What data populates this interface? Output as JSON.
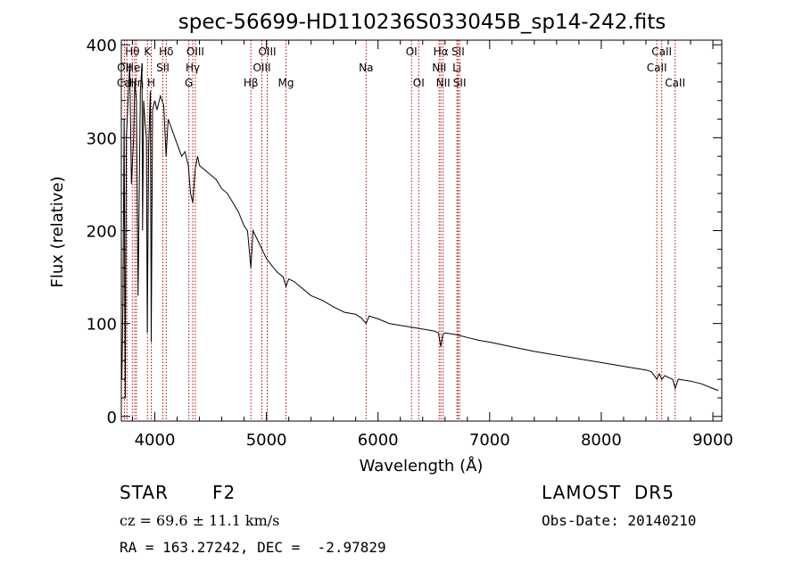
{
  "chart_data": {
    "type": "line",
    "title": "spec-56699-HD110236S033045B_sp14-242.fits",
    "xlabel": "Wavelength (Å)",
    "ylabel": "Flux (relative)",
    "xlim": [
      3700,
      9080
    ],
    "ylim": [
      -5,
      405
    ],
    "xticks": [
      4000,
      5000,
      6000,
      7000,
      8000,
      9000
    ],
    "xtick_labels": [
      "4000",
      "5000",
      "6000",
      "7000",
      "8000",
      "9000"
    ],
    "yticks": [
      0,
      100,
      200,
      300,
      400
    ],
    "ytick_labels": [
      "0",
      "100",
      "200",
      "300",
      "400"
    ],
    "grid": false,
    "series": [
      {
        "color": "#000000",
        "x": [
          3705,
          3715,
          3725,
          3735,
          3745,
          3760,
          3775,
          3790,
          3810,
          3820,
          3835,
          3850,
          3870,
          3885,
          3890,
          3900,
          3910,
          3925,
          3933,
          3945,
          3960,
          3968,
          3980,
          4000,
          4020,
          4050,
          4080,
          4101,
          4120,
          4150,
          4180,
          4210,
          4240,
          4270,
          4300,
          4320,
          4340,
          4360,
          4383,
          4400,
          4450,
          4500,
          4550,
          4600,
          4650,
          4700,
          4750,
          4800,
          4830,
          4861,
          4880,
          4920,
          4960,
          5000,
          5050,
          5100,
          5150,
          5175,
          5200,
          5250,
          5300,
          5400,
          5500,
          5600,
          5700,
          5800,
          5850,
          5893,
          5920,
          6000,
          6100,
          6200,
          6300,
          6400,
          6500,
          6540,
          6563,
          6580,
          6600,
          6700,
          6800,
          6900,
          7000,
          7200,
          7400,
          7600,
          7800,
          8000,
          8200,
          8400,
          8450,
          8498,
          8520,
          8542,
          8570,
          8600,
          8640,
          8662,
          8690,
          8800,
          8900,
          9000,
          9050
        ],
        "y": [
          40,
          130,
          320,
          20,
          300,
          340,
          380,
          250,
          300,
          360,
          340,
          130,
          350,
          380,
          200,
          340,
          320,
          300,
          90,
          290,
          350,
          80,
          330,
          340,
          330,
          345,
          335,
          280,
          320,
          310,
          300,
          290,
          280,
          285,
          270,
          240,
          230,
          265,
          280,
          270,
          265,
          260,
          255,
          245,
          240,
          230,
          220,
          205,
          200,
          160,
          200,
          190,
          180,
          170,
          162,
          155,
          150,
          140,
          148,
          145,
          140,
          130,
          125,
          118,
          112,
          110,
          106,
          100,
          108,
          105,
          100,
          98,
          96,
          94,
          92,
          90,
          75,
          88,
          90,
          88,
          85,
          82,
          80,
          75,
          70,
          66,
          62,
          58,
          54,
          50,
          48,
          40,
          46,
          40,
          44,
          42,
          40,
          30,
          40,
          38,
          35,
          30,
          28
        ]
      }
    ],
    "line_marks": [
      {
        "label": "OII",
        "x": 3727,
        "row": 1
      },
      {
        "label": "Hθ",
        "x": 3798,
        "row": 0
      },
      {
        "label": "CaII",
        "x": 3750,
        "row": 2
      },
      {
        "label": "HeI",
        "x": 3820,
        "row": 1
      },
      {
        "label": "Hη",
        "x": 3835,
        "row": 2
      },
      {
        "label": "K",
        "x": 3934,
        "row": 0
      },
      {
        "label": "H",
        "x": 3968,
        "row": 2
      },
      {
        "label": "Hδ",
        "x": 4102,
        "row": 0
      },
      {
        "label": "SII",
        "x": 4072,
        "row": 1
      },
      {
        "label": "OIII",
        "x": 4363,
        "row": 0
      },
      {
        "label": "Hγ",
        "x": 4340,
        "row": 1
      },
      {
        "label": "G",
        "x": 4305,
        "row": 2
      },
      {
        "label": "Hβ",
        "x": 4861,
        "row": 2
      },
      {
        "label": "OIII",
        "x": 5007,
        "row": 0
      },
      {
        "label": "OIII",
        "x": 4959,
        "row": 1
      },
      {
        "label": "Mg",
        "x": 5175,
        "row": 2
      },
      {
        "label": "Na",
        "x": 5893,
        "row": 1
      },
      {
        "label": "OI",
        "x": 6300,
        "row": 0
      },
      {
        "label": "OI",
        "x": 6364,
        "row": 2
      },
      {
        "label": "Hα",
        "x": 6563,
        "row": 0
      },
      {
        "label": "NII",
        "x": 6548,
        "row": 1
      },
      {
        "label": "NII",
        "x": 6583,
        "row": 2
      },
      {
        "label": "SII",
        "x": 6717,
        "row": 0
      },
      {
        "label": "Li",
        "x": 6707,
        "row": 1
      },
      {
        "label": "SII",
        "x": 6731,
        "row": 2
      },
      {
        "label": "CaII",
        "x": 8542,
        "row": 0
      },
      {
        "label": "CaII",
        "x": 8498,
        "row": 1
      },
      {
        "label": "CaII",
        "x": 8662,
        "row": 2
      }
    ]
  },
  "info": {
    "object_class": "STAR",
    "subclass": "F2",
    "survey": "LAMOST  DR5",
    "redshift": "cz = 69.6 ± 11.1 km/s",
    "obs_date": "Obs-Date: 20140210",
    "coords": "RA = 163.27242, DEC =  -2.97829"
  }
}
